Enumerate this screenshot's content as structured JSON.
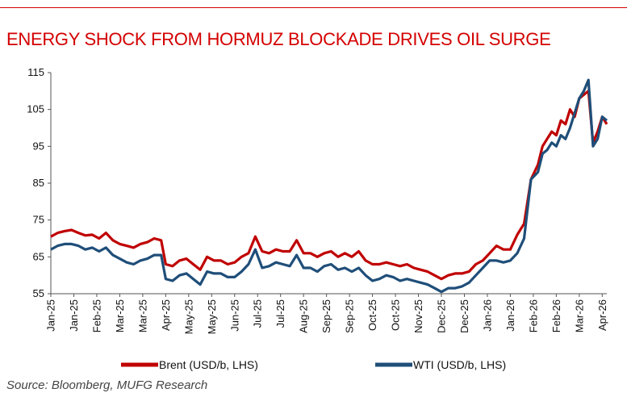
{
  "title": "ENERGY SHOCK FROM HORMUZ BLOCKADE DRIVES OIL SURGE",
  "source": "Source: Bloomberg, MUFG Research",
  "colors": {
    "accent": "#d40000",
    "brent": "#c00000",
    "wti": "#1f4e79"
  },
  "chart_data": {
    "type": "line",
    "title": "ENERGY SHOCK FROM HORMUZ BLOCKADE DRIVES OIL SURGE",
    "xlabel": "",
    "ylabel": "",
    "ylim": [
      55,
      115
    ],
    "yticks": [
      55,
      65,
      75,
      85,
      95,
      105,
      115
    ],
    "grid": false,
    "legend": "bottom",
    "x_ticks": [
      "Jan-25",
      "Jan-25",
      "Feb-25",
      "Mar-25",
      "Mar-25",
      "Apr-25",
      "May-25",
      "May-25",
      "Jun-25",
      "Jul-25",
      "Jul-25",
      "Aug-25",
      "Sep-25",
      "Sep-25",
      "Oct-25",
      "Oct-25",
      "Nov-25",
      "Dec-25",
      "Dec-25",
      "Jan-26",
      "Jan-26",
      "Feb-26",
      "Feb-26",
      "Mar-26",
      "Apr-26"
    ],
    "x_range": [
      0,
      24.2
    ],
    "series": [
      {
        "name": "Brent (USD/b, LHS)",
        "color": "#c00000",
        "x": [
          0,
          0.3,
          0.6,
          0.9,
          1.2,
          1.5,
          1.8,
          2.1,
          2.4,
          2.7,
          3,
          3.3,
          3.6,
          3.9,
          4.2,
          4.5,
          4.8,
          5,
          5.3,
          5.6,
          5.9,
          6.2,
          6.5,
          6.8,
          7.1,
          7.4,
          7.7,
          8,
          8.3,
          8.6,
          8.9,
          9.2,
          9.5,
          9.8,
          10.1,
          10.4,
          10.7,
          11,
          11.3,
          11.6,
          11.9,
          12.2,
          12.5,
          12.8,
          13.1,
          13.4,
          13.7,
          14,
          14.3,
          14.6,
          14.9,
          15.2,
          15.5,
          15.8,
          16.1,
          16.4,
          16.7,
          17,
          17.3,
          17.6,
          17.9,
          18.2,
          18.5,
          18.8,
          19.1,
          19.4,
          19.7,
          20,
          20.3,
          20.6,
          20.9,
          21.2,
          21.4,
          21.6,
          21.8,
          22,
          22.2,
          22.4,
          22.6,
          22.8,
          23,
          23.2,
          23.4,
          23.6,
          23.8,
          24,
          24.2
        ],
        "values": [
          70.5,
          71.5,
          72,
          72.3,
          71.5,
          70.8,
          71,
          70,
          71.5,
          69.5,
          68.5,
          68,
          67.5,
          68.5,
          69,
          70,
          69.5,
          63,
          62.5,
          64,
          64.5,
          63,
          61.5,
          65,
          64,
          64,
          63,
          63.5,
          65,
          66,
          70.5,
          66.5,
          66,
          67,
          66.5,
          66.5,
          69.5,
          66,
          66,
          65,
          66,
          66.5,
          65,
          66,
          65,
          66.5,
          64,
          63,
          63,
          63.5,
          63,
          62.5,
          63,
          62,
          61.5,
          61,
          60,
          59,
          60,
          60.5,
          60.5,
          61,
          63,
          64,
          66,
          68,
          67,
          67,
          71,
          74,
          86,
          90,
          95,
          97,
          99,
          98,
          102,
          101,
          105,
          103,
          108,
          109,
          110,
          96,
          99,
          103,
          101
        ]
      },
      {
        "name": "WTI (USD/b, LHS)",
        "color": "#1f4e79",
        "x": [
          0,
          0.3,
          0.6,
          0.9,
          1.2,
          1.5,
          1.8,
          2.1,
          2.4,
          2.7,
          3,
          3.3,
          3.6,
          3.9,
          4.2,
          4.5,
          4.8,
          5,
          5.3,
          5.6,
          5.9,
          6.2,
          6.5,
          6.8,
          7.1,
          7.4,
          7.7,
          8,
          8.3,
          8.6,
          8.9,
          9.2,
          9.5,
          9.8,
          10.1,
          10.4,
          10.7,
          11,
          11.3,
          11.6,
          11.9,
          12.2,
          12.5,
          12.8,
          13.1,
          13.4,
          13.7,
          14,
          14.3,
          14.6,
          14.9,
          15.2,
          15.5,
          15.8,
          16.1,
          16.4,
          16.7,
          17,
          17.3,
          17.6,
          17.9,
          18.2,
          18.5,
          18.8,
          19.1,
          19.4,
          19.7,
          20,
          20.3,
          20.6,
          20.9,
          21.2,
          21.4,
          21.6,
          21.8,
          22,
          22.2,
          22.4,
          22.6,
          22.8,
          23,
          23.2,
          23.4,
          23.6,
          23.8,
          24,
          24.2
        ],
        "values": [
          67,
          68,
          68.5,
          68.5,
          68,
          67,
          67.5,
          66.5,
          67.5,
          65.5,
          64.5,
          63.5,
          63,
          64,
          64.5,
          65.5,
          65.5,
          59,
          58.5,
          60,
          60.5,
          59,
          57.5,
          61,
          60.5,
          60.5,
          59.5,
          59.5,
          61,
          63,
          67,
          62,
          62.5,
          63.5,
          63,
          62.5,
          65.5,
          62,
          62,
          61,
          62.5,
          63,
          61.5,
          62,
          61,
          62,
          60,
          58.5,
          59,
          60,
          59.5,
          58.5,
          59,
          58.5,
          58,
          57.5,
          56.5,
          55.5,
          56.5,
          56.5,
          57,
          58,
          60,
          62,
          64,
          64,
          63.5,
          64,
          66,
          70,
          86,
          88,
          93,
          94,
          96,
          95,
          98,
          97,
          100,
          104,
          108,
          110,
          113,
          95,
          97,
          103,
          102
        ]
      }
    ]
  }
}
